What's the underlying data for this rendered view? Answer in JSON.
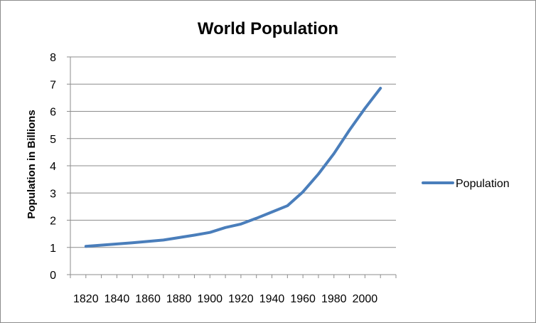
{
  "chart_data": {
    "type": "line",
    "title": "World Population",
    "xlabel": "",
    "ylabel": "Population in Billions",
    "xlim": [
      1810,
      2020
    ],
    "ylim": [
      0,
      8
    ],
    "x_ticks": [
      1820,
      1840,
      1860,
      1880,
      1900,
      1920,
      1940,
      1960,
      1980,
      2000
    ],
    "y_ticks": [
      0,
      1,
      2,
      3,
      4,
      5,
      6,
      7,
      8
    ],
    "grid": {
      "horizontal": true,
      "vertical": false
    },
    "legend": {
      "position": "right"
    },
    "series": [
      {
        "name": "Population",
        "color": "#4a7ebb",
        "x": [
          1820,
          1850,
          1870,
          1890,
          1900,
          1910,
          1920,
          1930,
          1940,
          1950,
          1960,
          1970,
          1980,
          1990,
          2000,
          2010
        ],
        "y": [
          1.04,
          1.17,
          1.27,
          1.45,
          1.55,
          1.73,
          1.86,
          2.07,
          2.3,
          2.53,
          3.04,
          3.7,
          4.45,
          5.31,
          6.11,
          6.85
        ]
      }
    ]
  }
}
